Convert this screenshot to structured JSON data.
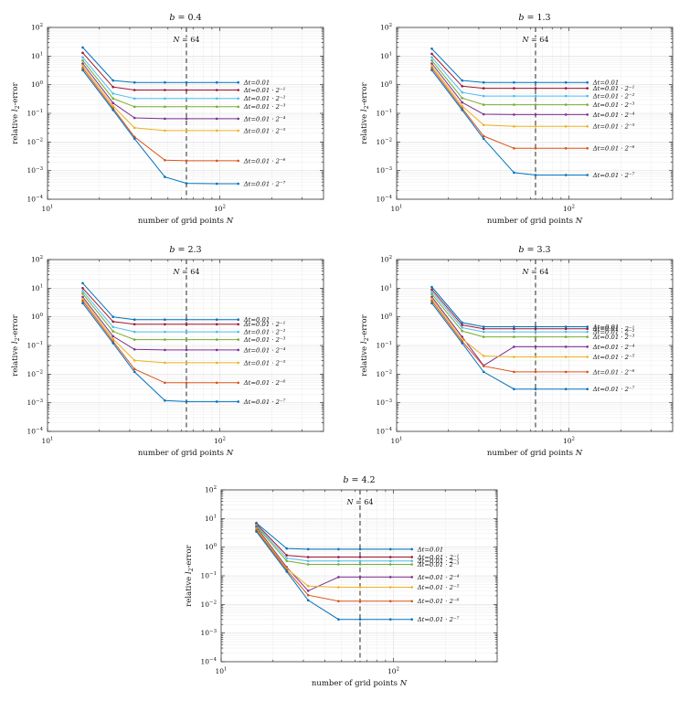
{
  "figure_title": "",
  "axis_labels": {
    "x_segments": [
      {
        "t": "number of grid points "
      },
      {
        "t": "N",
        "i": 1
      }
    ],
    "y_segments": [
      {
        "t": "relative "
      },
      {
        "t": "l",
        "i": 1
      },
      {
        "t": "2",
        "s": 1
      },
      {
        "t": "-error"
      }
    ]
  },
  "chart_data": [
    {
      "type": "line",
      "title": "b = 0.4",
      "xscale": "log",
      "yscale": "log",
      "xlim": [
        10,
        400
      ],
      "ylim": [
        0.0001,
        100
      ],
      "xlabel": "number of grid points N",
      "ylabel": "relative l2-error",
      "x_tick_exps": [
        1,
        2
      ],
      "y_tick_exps": [
        2,
        1,
        0,
        -1,
        -2,
        -3,
        -4
      ],
      "vline_x": 64,
      "annotation": "N = 64",
      "x": [
        16,
        24,
        32,
        48,
        64,
        96,
        128
      ],
      "series": [
        {
          "label": "Δt=0.01",
          "color": "#0072BD",
          "values": [
            20,
            1.4,
            1.2,
            1.2,
            1.2,
            1.2,
            1.2
          ]
        },
        {
          "label": "Δt=0.01 · 2⁻¹",
          "color": "#A2142F",
          "values": [
            13,
            0.83,
            0.65,
            0.65,
            0.65,
            0.65,
            0.65
          ]
        },
        {
          "label": "Δt=0.01 · 2⁻²",
          "color": "#4DBEEE",
          "values": [
            9,
            0.49,
            0.33,
            0.33,
            0.33,
            0.33,
            0.33
          ]
        },
        {
          "label": "Δt=0.01 · 2⁻³",
          "color": "#77AC30",
          "values": [
            7,
            0.33,
            0.17,
            0.17,
            0.17,
            0.17,
            0.17
          ]
        },
        {
          "label": "Δt=0.01 · 2⁻⁴",
          "color": "#7E2F8E",
          "values": [
            5.5,
            0.23,
            0.069,
            0.065,
            0.065,
            0.065,
            0.065
          ]
        },
        {
          "label": "Δt=0.01 · 2⁻⁵",
          "color": "#EDB120",
          "values": [
            4.5,
            0.18,
            0.031,
            0.025,
            0.025,
            0.025,
            0.025
          ]
        },
        {
          "label": "Δt=0.01 · 2⁻⁶",
          "color": "#D95319",
          "values": [
            3.8,
            0.15,
            0.015,
            0.0023,
            0.0022,
            0.0022,
            0.0022
          ]
        },
        {
          "label": "Δt=0.01 · 2⁻⁷",
          "color": "#0072BD",
          "values": [
            3.2,
            0.13,
            0.013,
            0.0006,
            0.00036,
            0.00035,
            0.00035
          ]
        }
      ]
    },
    {
      "type": "line",
      "title": "b = 1.3",
      "xscale": "log",
      "yscale": "log",
      "xlim": [
        10,
        400
      ],
      "ylim": [
        0.0001,
        100
      ],
      "xlabel": "number of grid points N",
      "ylabel": "relative l2-error",
      "x_tick_exps": [
        1,
        2
      ],
      "y_tick_exps": [
        2,
        1,
        0,
        -1,
        -2,
        -3,
        -4
      ],
      "vline_x": 64,
      "annotation": "N = 64",
      "x": [
        16,
        24,
        32,
        48,
        64,
        96,
        128
      ],
      "series": [
        {
          "label": "Δt=0.01",
          "color": "#0072BD",
          "values": [
            18,
            1.4,
            1.2,
            1.2,
            1.2,
            1.2,
            1.2
          ]
        },
        {
          "label": "Δt=0.01 · 2⁻¹",
          "color": "#A2142F",
          "values": [
            12,
            0.89,
            0.75,
            0.75,
            0.75,
            0.75,
            0.75
          ]
        },
        {
          "label": "Δt=0.01 · 2⁻²",
          "color": "#4DBEEE",
          "values": [
            9,
            0.54,
            0.4,
            0.4,
            0.4,
            0.4,
            0.4
          ]
        },
        {
          "label": "Δt=0.01 · 2⁻³",
          "color": "#77AC30",
          "values": [
            7,
            0.34,
            0.2,
            0.2,
            0.2,
            0.2,
            0.2
          ]
        },
        {
          "label": "Δt=0.01 · 2⁻⁴",
          "color": "#7E2F8E",
          "values": [
            5.5,
            0.24,
            0.093,
            0.09,
            0.09,
            0.09,
            0.09
          ]
        },
        {
          "label": "Δt=0.01 · 2⁻⁵",
          "color": "#EDB120",
          "values": [
            4.5,
            0.18,
            0.039,
            0.035,
            0.035,
            0.035,
            0.035
          ]
        },
        {
          "label": "Δt=0.01 · 2⁻⁶",
          "color": "#D95319",
          "values": [
            3.8,
            0.15,
            0.016,
            0.006,
            0.006,
            0.006,
            0.006
          ]
        },
        {
          "label": "Δt=0.01 · 2⁻⁷",
          "color": "#0072BD",
          "values": [
            3.2,
            0.13,
            0.013,
            0.00085,
            0.0007,
            0.0007,
            0.0007
          ]
        }
      ]
    },
    {
      "type": "line",
      "title": "b = 2.3",
      "xscale": "log",
      "yscale": "log",
      "xlim": [
        10,
        400
      ],
      "ylim": [
        0.0001,
        100
      ],
      "xlabel": "number of grid points N",
      "ylabel": "relative l2-error",
      "x_tick_exps": [
        1,
        2
      ],
      "y_tick_exps": [
        2,
        1,
        0,
        -1,
        -2,
        -3,
        -4
      ],
      "vline_x": 64,
      "annotation": "N = 64",
      "x": [
        16,
        24,
        32,
        48,
        64,
        96,
        128
      ],
      "series": [
        {
          "label": "Δt=0.01",
          "color": "#0072BD",
          "values": [
            15,
            1.0,
            0.8,
            0.8,
            0.8,
            0.8,
            0.8
          ]
        },
        {
          "label": "Δt=0.01 · 2⁻¹",
          "color": "#A2142F",
          "values": [
            10,
            0.68,
            0.55,
            0.55,
            0.55,
            0.55,
            0.55
          ]
        },
        {
          "label": "Δt=0.01 · 2⁻²",
          "color": "#4DBEEE",
          "values": [
            8,
            0.44,
            0.3,
            0.3,
            0.3,
            0.3,
            0.3
          ]
        },
        {
          "label": "Δt=0.01 · 2⁻³",
          "color": "#77AC30",
          "values": [
            6.5,
            0.31,
            0.16,
            0.16,
            0.16,
            0.16,
            0.16
          ]
        },
        {
          "label": "Δt=0.01 · 2⁻⁴",
          "color": "#7E2F8E",
          "values": [
            5,
            0.21,
            0.073,
            0.07,
            0.07,
            0.07,
            0.07
          ]
        },
        {
          "label": "Δt=0.01 · 2⁻⁵",
          "color": "#EDB120",
          "values": [
            4.2,
            0.17,
            0.03,
            0.025,
            0.025,
            0.025,
            0.025
          ]
        },
        {
          "label": "Δt=0.01 · 2⁻⁶",
          "color": "#D95319",
          "values": [
            3.6,
            0.14,
            0.015,
            0.005,
            0.005,
            0.005,
            0.005
          ]
        },
        {
          "label": "Δt=0.01 · 2⁻⁷",
          "color": "#0072BD",
          "values": [
            3.0,
            0.12,
            0.012,
            0.0012,
            0.0011,
            0.0011,
            0.0011
          ]
        }
      ]
    },
    {
      "type": "line",
      "title": "b = 3.3",
      "xscale": "log",
      "yscale": "log",
      "xlim": [
        10,
        400
      ],
      "ylim": [
        0.0001,
        100
      ],
      "xlabel": "number of grid points N",
      "ylabel": "relative l2-error",
      "x_tick_exps": [
        1,
        2
      ],
      "y_tick_exps": [
        2,
        1,
        0,
        -1,
        -2,
        -3,
        -4
      ],
      "vline_x": 64,
      "annotation": "N = 64",
      "x": [
        16,
        24,
        32,
        48,
        64,
        96,
        128
      ],
      "series": [
        {
          "label": "Δt=0.01",
          "color": "#0072BD",
          "values": [
            11,
            0.63,
            0.45,
            0.45,
            0.45,
            0.45,
            0.45
          ]
        },
        {
          "label": "Δt=0.01 · 2⁻¹",
          "color": "#A2142F",
          "values": [
            9,
            0.52,
            0.38,
            0.38,
            0.38,
            0.38,
            0.38
          ]
        },
        {
          "label": "Δt=0.01 · 2⁻²",
          "color": "#4DBEEE",
          "values": [
            7.5,
            0.42,
            0.3,
            0.3,
            0.3,
            0.3,
            0.3
          ]
        },
        {
          "label": "Δt=0.01 · 2⁻³",
          "color": "#77AC30",
          "values": [
            6.2,
            0.32,
            0.2,
            0.2,
            0.2,
            0.2,
            0.2
          ]
        },
        {
          "label": "Δt=0.01 · 2⁻⁴",
          "color": "#7E2F8E",
          "values": [
            5,
            0.2,
            0.02,
            0.09,
            0.09,
            0.09,
            0.09
          ]
        },
        {
          "label": "Δt=0.01 · 2⁻⁵",
          "color": "#EDB120",
          "values": [
            4.2,
            0.17,
            0.043,
            0.04,
            0.04,
            0.04,
            0.04
          ]
        },
        {
          "label": "Δt=0.01 · 2⁻⁶",
          "color": "#D95319",
          "values": [
            3.6,
            0.14,
            0.019,
            0.012,
            0.012,
            0.012,
            0.012
          ]
        },
        {
          "label": "Δt=0.01 · 2⁻⁷",
          "color": "#0072BD",
          "values": [
            3.0,
            0.12,
            0.012,
            0.003,
            0.003,
            0.003,
            0.003
          ]
        }
      ]
    },
    {
      "type": "line",
      "title": "b = 4.2",
      "xscale": "log",
      "yscale": "log",
      "xlim": [
        10,
        400
      ],
      "ylim": [
        0.0001,
        100
      ],
      "xlabel": "number of grid points N",
      "ylabel": "relative l2-error",
      "x_tick_exps": [
        1,
        2
      ],
      "y_tick_exps": [
        2,
        1,
        0,
        -1,
        -2,
        -3,
        -4
      ],
      "vline_x": 64,
      "annotation": "N = 64",
      "x": [
        16,
        24,
        32,
        48,
        64,
        96,
        128
      ],
      "series": [
        {
          "label": "Δt=0.01",
          "color": "#0072BD",
          "values": [
            7,
            0.9,
            0.85,
            0.85,
            0.85,
            0.85,
            0.85
          ]
        },
        {
          "label": "Δt=0.01 · 2⁻¹",
          "color": "#A2142F",
          "values": [
            6.5,
            0.52,
            0.45,
            0.45,
            0.45,
            0.45,
            0.45
          ]
        },
        {
          "label": "Δt=0.01 · 2⁻²",
          "color": "#4DBEEE",
          "values": [
            6,
            0.41,
            0.33,
            0.33,
            0.33,
            0.33,
            0.33
          ]
        },
        {
          "label": "Δt=0.01 · 2⁻³",
          "color": "#77AC30",
          "values": [
            5.5,
            0.33,
            0.25,
            0.25,
            0.25,
            0.25,
            0.25
          ]
        },
        {
          "label": "Δt=0.01 · 2⁻⁴",
          "color": "#7E2F8E",
          "values": [
            5,
            0.2,
            0.03,
            0.09,
            0.09,
            0.09,
            0.09
          ]
        },
        {
          "label": "Δt=0.01 · 2⁻⁵",
          "color": "#EDB120",
          "values": [
            4.5,
            0.18,
            0.044,
            0.04,
            0.04,
            0.04,
            0.04
          ]
        },
        {
          "label": "Δt=0.01 · 2⁻⁶",
          "color": "#D95319",
          "values": [
            4,
            0.16,
            0.021,
            0.013,
            0.013,
            0.013,
            0.013
          ]
        },
        {
          "label": "Δt=0.01 · 2⁻⁷",
          "color": "#0072BD",
          "values": [
            3.5,
            0.14,
            0.014,
            0.003,
            0.003,
            0.003,
            0.003
          ]
        }
      ]
    }
  ]
}
